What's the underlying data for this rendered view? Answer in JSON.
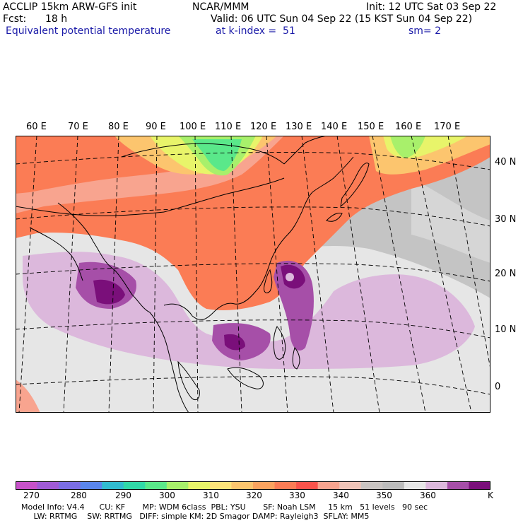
{
  "header": {
    "model": "ACCLIP 15km ARW-GFS init",
    "center": "NCAR/MMM",
    "init": "Init: 12 UTC Sat 03 Sep 22",
    "fcst_label": "Fcst:",
    "fcst_value": "18 h",
    "valid": "Valid: 06 UTC Sun 04 Sep 22 (15 KST Sun 04 Sep 22)",
    "field": "Equivalent potential temperature",
    "level": "at k-index =  51",
    "smooth": "sm= 2"
  },
  "map": {
    "lon_labels": [
      "60 E",
      "70 E",
      "80 E",
      "90 E",
      "100 E",
      "110 E",
      "120 E",
      "130 E",
      "140 E",
      "150 E",
      "160 E",
      "170 E"
    ],
    "lat_labels": [
      "40 N",
      "30 N",
      "20 N",
      "10 N",
      "0"
    ]
  },
  "colorbar": {
    "unit": "K",
    "ticks": [
      "270",
      "280",
      "290",
      "300",
      "310",
      "320",
      "330",
      "340",
      "350",
      "360"
    ],
    "colors": [
      "#c752c9",
      "#a05bd6",
      "#7b6ee3",
      "#5a86ec",
      "#31bcd0",
      "#31d9a8",
      "#5ae88a",
      "#a8f06b",
      "#e8f46a",
      "#fde47a",
      "#fcc56e",
      "#fba35f",
      "#fb7c55",
      "#f9534b",
      "#f8a48f",
      "#efc4b8",
      "#c9c4c2",
      "#bcbcbc",
      "#e6e6e6",
      "#dcb8dc",
      "#a64fa8",
      "#7a0f7a"
    ]
  },
  "footer": {
    "line1": "Model Info: V4.4      CU: KF       MP: WDM 6class  PBL: YSU       SF: Noah LSM     15 km   51 levels   90 sec",
    "line2": "     LW: RRTMG    SW: RRTMG   DIFF: simple KM: 2D Smagor DAMP: Rayleigh3  SFLAY: MM5"
  }
}
